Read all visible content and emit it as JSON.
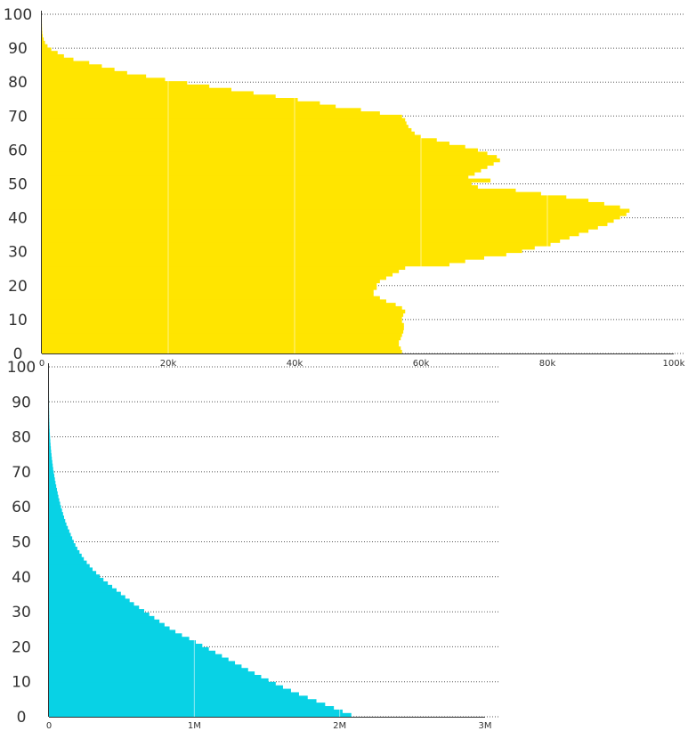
{
  "chart_data": [
    {
      "type": "bar",
      "orientation": "horizontal",
      "color": "#FFE500",
      "xlim": [
        0,
        100000
      ],
      "ylim": [
        0,
        100
      ],
      "x_ticks": [
        "0",
        "20k",
        "40k",
        "60k",
        "80k",
        "100k"
      ],
      "y_ticks": [
        "0",
        "10",
        "20",
        "30",
        "40",
        "50",
        "60",
        "70",
        "80",
        "90",
        "100"
      ],
      "grid": true,
      "categories_ages": [
        0,
        1,
        2,
        3,
        4,
        5,
        6,
        7,
        8,
        9,
        10,
        11,
        12,
        13,
        14,
        15,
        16,
        17,
        18,
        19,
        20,
        21,
        22,
        23,
        24,
        25,
        26,
        27,
        28,
        29,
        30,
        31,
        32,
        33,
        34,
        35,
        36,
        37,
        38,
        39,
        40,
        41,
        42,
        43,
        44,
        45,
        46,
        47,
        48,
        49,
        50,
        51,
        52,
        53,
        54,
        55,
        56,
        57,
        58,
        59,
        60,
        61,
        62,
        63,
        64,
        65,
        66,
        67,
        68,
        69,
        70,
        71,
        72,
        73,
        74,
        75,
        76,
        77,
        78,
        79,
        80,
        81,
        82,
        83,
        84,
        85,
        86,
        87,
        88,
        89,
        90,
        91,
        92,
        93,
        94,
        95,
        96,
        97,
        98,
        99,
        100
      ],
      "values": [
        57000,
        56800,
        56500,
        56500,
        56800,
        57000,
        57200,
        57300,
        57300,
        57000,
        57000,
        57200,
        57500,
        57000,
        56000,
        54500,
        53500,
        52500,
        52500,
        53000,
        53000,
        53500,
        54500,
        55500,
        56500,
        57500,
        64500,
        67000,
        70000,
        73500,
        76000,
        78000,
        80500,
        82000,
        83500,
        85000,
        86500,
        88000,
        89500,
        90500,
        91500,
        92500,
        93000,
        91500,
        89000,
        86500,
        83000,
        79000,
        75000,
        69000,
        68000,
        71000,
        67500,
        68500,
        69500,
        70500,
        71500,
        72500,
        72000,
        70500,
        69000,
        67000,
        64500,
        62500,
        60000,
        59000,
        58500,
        58000,
        57700,
        57500,
        57000,
        53500,
        50500,
        46500,
        44000,
        40500,
        37000,
        33500,
        30000,
        26500,
        23000,
        19500,
        16500,
        13500,
        11500,
        9500,
        7500,
        5000,
        3500,
        2500,
        1500,
        900,
        500,
        300,
        150,
        80,
        40,
        20,
        10,
        5,
        2
      ]
    },
    {
      "type": "bar",
      "orientation": "horizontal",
      "color": "#08D2E5",
      "xlim": [
        0,
        3000000
      ],
      "ylim": [
        0,
        100
      ],
      "x_ticks": [
        "0",
        "1M",
        "2M",
        "3M"
      ],
      "y_ticks": [
        "0",
        "10",
        "20",
        "30",
        "40",
        "50",
        "60",
        "70",
        "80",
        "90",
        "100"
      ],
      "grid": true,
      "categories_ages": [
        0,
        1,
        2,
        3,
        4,
        5,
        6,
        7,
        8,
        9,
        10,
        11,
        12,
        13,
        14,
        15,
        16,
        17,
        18,
        19,
        20,
        21,
        22,
        23,
        24,
        25,
        26,
        27,
        28,
        29,
        30,
        31,
        32,
        33,
        34,
        35,
        36,
        37,
        38,
        39,
        40,
        41,
        42,
        43,
        44,
        45,
        46,
        47,
        48,
        49,
        50,
        51,
        52,
        53,
        54,
        55,
        56,
        57,
        58,
        59,
        60,
        61,
        62,
        63,
        64,
        65,
        66,
        67,
        68,
        69,
        70,
        71,
        72,
        73,
        74,
        75,
        76,
        77,
        78,
        79,
        80,
        81,
        82,
        83,
        84,
        85,
        86,
        87,
        88,
        89,
        90,
        91,
        92,
        93,
        94,
        95,
        96,
        97,
        98,
        99,
        100
      ],
      "values": [
        2080000,
        2020000,
        1960000,
        1900000,
        1840000,
        1780000,
        1720000,
        1665000,
        1610000,
        1560000,
        1510000,
        1460000,
        1415000,
        1370000,
        1325000,
        1280000,
        1235000,
        1190000,
        1145000,
        1100000,
        1055000,
        1010000,
        965000,
        915000,
        870000,
        830000,
        795000,
        760000,
        725000,
        690000,
        655000,
        620000,
        585000,
        555000,
        525000,
        495000,
        465000,
        435000,
        405000,
        375000,
        350000,
        325000,
        300000,
        280000,
        260000,
        240000,
        225000,
        210000,
        195000,
        182000,
        170000,
        160000,
        150000,
        140000,
        130000,
        120000,
        112000,
        104000,
        97000,
        90000,
        83000,
        77000,
        71000,
        65000,
        60000,
        55000,
        50000,
        45000,
        41000,
        37000,
        33000,
        29000,
        26000,
        23000,
        20000,
        17500,
        15000,
        13000,
        11000,
        9300,
        7800,
        6500,
        5300,
        4300,
        3400,
        2600,
        2000,
        1500,
        1100,
        800,
        550,
        380,
        260,
        170,
        110,
        70,
        45,
        30,
        18,
        10,
        5
      ]
    }
  ]
}
